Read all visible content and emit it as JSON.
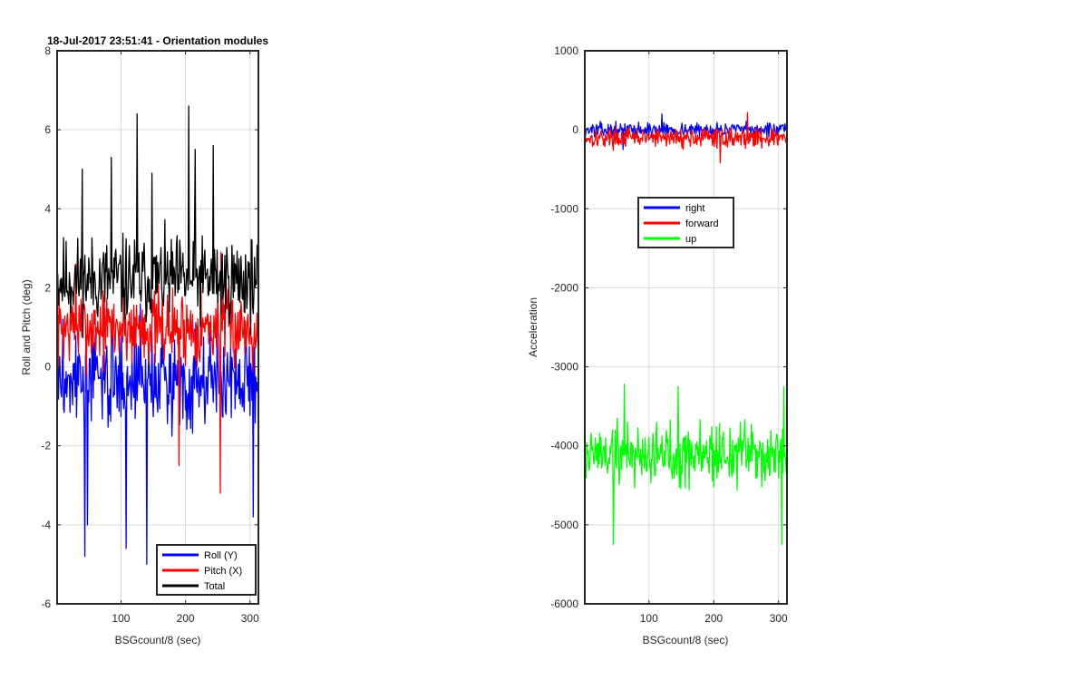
{
  "figure": {
    "background": "#ffffff"
  },
  "chart_data": [
    {
      "type": "line",
      "title": "18-Jul-2017 23:51:41 - Orientation modules",
      "xlabel": "BSGcount/8 (sec)",
      "ylabel": "Roll and Pitch (deg)",
      "xlim": [
        1,
        313
      ],
      "ylim": [
        -6,
        8
      ],
      "xticks": [
        100,
        200,
        300
      ],
      "yticks": [
        -6,
        -4,
        -2,
        0,
        2,
        4,
        6,
        8
      ],
      "grid": true,
      "legend_position": "bottom-right",
      "series": [
        {
          "name": "Roll (Y)",
          "color": "#0000ff",
          "base": -0.3,
          "amp": 1.1,
          "spikes": [
            [
              44,
              -4.8
            ],
            [
              48,
              -4.0
            ],
            [
              108,
              -4.6
            ],
            [
              140,
              -5.0
            ],
            [
              130,
              1.6
            ],
            [
              305,
              -3.8
            ]
          ],
          "seed": 3
        },
        {
          "name": "Pitch (X)",
          "color": "#ff0000",
          "base": 1.0,
          "amp": 0.9,
          "spikes": [
            [
              190,
              -2.5
            ],
            [
              254,
              -3.2
            ],
            [
              30,
              2.6
            ],
            [
              255,
              2.9
            ]
          ],
          "seed": 7
        },
        {
          "name": "Total",
          "color": "#000000",
          "base": 2.2,
          "amp": 1.0,
          "spikes": [
            [
              125,
              6.4
            ],
            [
              205,
              6.6
            ],
            [
              40,
              5.0
            ],
            [
              85,
              5.3
            ],
            [
              215,
              5.5
            ],
            [
              243,
              5.6
            ],
            [
              148,
              4.9
            ]
          ],
          "seed": 11
        }
      ]
    },
    {
      "type": "line",
      "title": "",
      "xlabel": "BSGcount/8 (sec)",
      "ylabel": "Acceleration",
      "xlim": [
        1,
        313
      ],
      "ylim": [
        -6000,
        1000
      ],
      "xticks": [
        100,
        200,
        300
      ],
      "yticks": [
        -6000,
        -5000,
        -4000,
        -3000,
        -2000,
        -1000,
        0,
        1000
      ],
      "grid": true,
      "legend_position": "upper-middle",
      "series": [
        {
          "name": "right",
          "color": "#0000ff",
          "base": 0,
          "amp": 80,
          "spikes": [
            [
              120,
              200
            ],
            [
              60,
              -250
            ]
          ],
          "seed": 13
        },
        {
          "name": "forward",
          "color": "#ff0000",
          "base": -100,
          "amp": 110,
          "spikes": [
            [
              252,
              220
            ],
            [
              210,
              -420
            ]
          ],
          "seed": 17
        },
        {
          "name": "up",
          "color": "#00ff00",
          "base": -4100,
          "amp": 380,
          "spikes": [
            [
              45,
              -5250
            ],
            [
              145,
              -3250
            ],
            [
              308,
              -3250
            ],
            [
              305,
              -5250
            ],
            [
              62,
              -3220
            ]
          ],
          "seed": 19
        }
      ]
    }
  ]
}
